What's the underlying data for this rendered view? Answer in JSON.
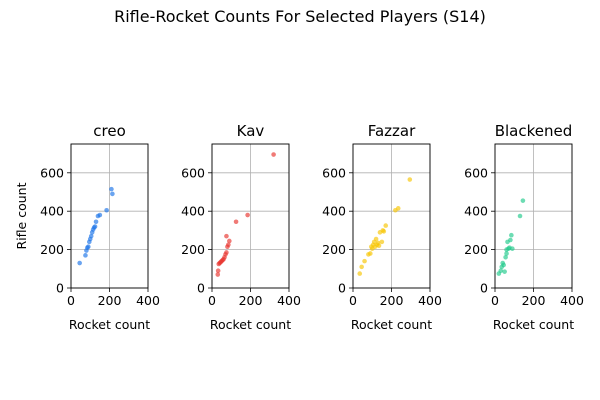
{
  "figure_title": "Rifle-Rocket Counts For Selected Players (S14)",
  "shared_ylabel": "Rifle count",
  "chart_data": [
    {
      "type": "scatter",
      "title": "creo",
      "xlabel": "Rocket count",
      "ylabel": "Rifle count",
      "xlim": [
        0,
        400
      ],
      "ylim": [
        0,
        750
      ],
      "xticks": [
        0,
        200,
        400
      ],
      "yticks": [
        0,
        200,
        400,
        600
      ],
      "grid": true,
      "color": "#1a73e8",
      "x": [
        45,
        75,
        80,
        85,
        90,
        95,
        100,
        105,
        110,
        115,
        120,
        125,
        130,
        140,
        150,
        185,
        210,
        215
      ],
      "y": [
        130,
        170,
        195,
        210,
        215,
        240,
        255,
        270,
        290,
        305,
        315,
        320,
        345,
        375,
        380,
        405,
        515,
        490
      ]
    },
    {
      "type": "scatter",
      "title": "Kav",
      "xlabel": "Rocket count",
      "ylabel": "",
      "xlim": [
        0,
        400
      ],
      "ylim": [
        0,
        750
      ],
      "xticks": [
        0,
        200,
        400
      ],
      "yticks": [
        0,
        200,
        400,
        600
      ],
      "grid": true,
      "color": "#e8322d",
      "x": [
        30,
        32,
        35,
        40,
        45,
        50,
        55,
        60,
        65,
        70,
        75,
        75,
        80,
        85,
        90,
        125,
        185,
        320
      ],
      "y": [
        70,
        90,
        125,
        130,
        135,
        140,
        145,
        150,
        160,
        175,
        185,
        270,
        215,
        225,
        245,
        345,
        380,
        695
      ]
    },
    {
      "type": "scatter",
      "title": "Fazzar",
      "xlabel": "Rocket count",
      "ylabel": "",
      "xlim": [
        0,
        400
      ],
      "ylim": [
        0,
        750
      ],
      "xticks": [
        0,
        200,
        400
      ],
      "yticks": [
        0,
        200,
        400,
        600
      ],
      "grid": true,
      "color": "#f7c400",
      "x": [
        35,
        45,
        60,
        80,
        90,
        95,
        100,
        105,
        110,
        115,
        120,
        125,
        130,
        135,
        140,
        150,
        155,
        160,
        170,
        220,
        235,
        295
      ],
      "y": [
        75,
        110,
        140,
        175,
        180,
        215,
        205,
        225,
        240,
        215,
        255,
        225,
        235,
        220,
        290,
        240,
        300,
        295,
        325,
        405,
        415,
        565
      ]
    },
    {
      "type": "scatter",
      "title": "Blackened",
      "xlabel": "Rocket count",
      "ylabel": "",
      "xlim": [
        0,
        400
      ],
      "ylim": [
        0,
        750
      ],
      "xticks": [
        0,
        200,
        400
      ],
      "yticks": [
        0,
        200,
        400,
        600
      ],
      "grid": true,
      "color": "#1ec98a",
      "x": [
        20,
        30,
        35,
        40,
        45,
        50,
        55,
        60,
        60,
        65,
        70,
        75,
        80,
        85,
        90,
        130,
        145
      ],
      "y": [
        75,
        90,
        110,
        130,
        120,
        85,
        160,
        180,
        200,
        240,
        205,
        210,
        250,
        275,
        205,
        375,
        455
      ]
    }
  ]
}
